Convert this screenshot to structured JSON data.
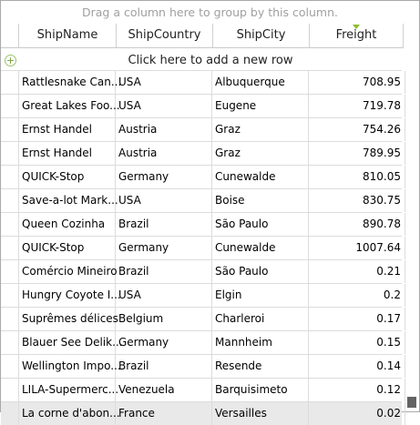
{
  "group_panel": {
    "text": "Drag a column here to group by this column."
  },
  "columns": [
    "ShipName",
    "ShipCountry",
    "ShipCity",
    "Freight"
  ],
  "new_row": {
    "text": "Click here to add a new row",
    "icon": "plus-circle-icon"
  },
  "sort": {
    "column": "Freight",
    "direction": "descending",
    "indicator_color": "#8cbd2d"
  },
  "rows": [
    [
      "Rattlesnake Can...",
      "USA",
      "Albuquerque",
      "708.95"
    ],
    [
      "Great Lakes Foo...",
      "USA",
      "Eugene",
      "719.78"
    ],
    [
      "Ernst Handel",
      "Austria",
      "Graz",
      "754.26"
    ],
    [
      "Ernst Handel",
      "Austria",
      "Graz",
      "789.95"
    ],
    [
      "QUICK-Stop",
      "Germany",
      "Cunewalde",
      "810.05"
    ],
    [
      "Save-a-lot Mark...",
      "USA",
      "Boise",
      "830.75"
    ],
    [
      "Queen Cozinha",
      "Brazil",
      "São Paulo",
      "890.78"
    ],
    [
      "QUICK-Stop",
      "Germany",
      "Cunewalde",
      "1007.64"
    ],
    [
      "Comércio Mineiro",
      "Brazil",
      "São Paulo",
      "0.21"
    ],
    [
      "Hungry Coyote I...",
      "USA",
      "Elgin",
      "0.2"
    ],
    [
      "Suprêmes délices",
      "Belgium",
      "Charleroi",
      "0.17"
    ],
    [
      "Blauer See Delik...",
      "Germany",
      "Mannheim",
      "0.15"
    ],
    [
      "Wellington Impo...",
      "Brazil",
      "Resende",
      "0.14"
    ],
    [
      "LILA-Supermerc...",
      "Venezuela",
      "Barquisimeto",
      "0.12"
    ],
    [
      "La corne d'abon...",
      "France",
      "Versailles",
      "0.02"
    ]
  ],
  "selected_row_index": 14,
  "scroll_position": 1.0
}
